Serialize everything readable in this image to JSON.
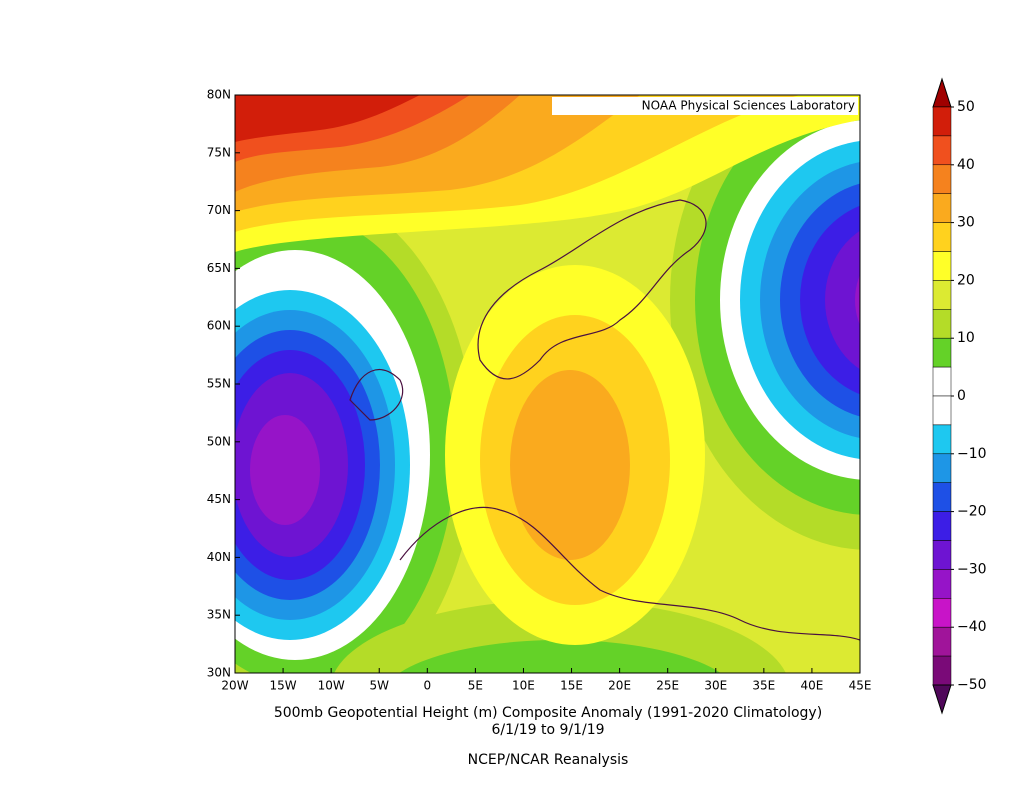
{
  "map": {
    "title": "500mb Geopotential Height (m) Composite Anomaly (1991-2020 Climatology)",
    "subtitle": "6/1/19  to 9/1/19",
    "source": "NCEP/NCAR Reanalysis",
    "credit": "NOAA Physical Sciences Laboratory",
    "lonlim": [
      -20,
      45
    ],
    "latlim": [
      30,
      80
    ],
    "lon_ticks": [
      {
        "value": -20,
        "label": "20W"
      },
      {
        "value": -15,
        "label": "15W"
      },
      {
        "value": -10,
        "label": "10W"
      },
      {
        "value": -5,
        "label": "5W"
      },
      0,
      {
        "value": 5,
        "label": "5E"
      },
      {
        "value": 10,
        "label": "10E"
      },
      {
        "value": 15,
        "label": "15E"
      },
      {
        "value": 20,
        "label": "20E"
      },
      {
        "value": 25,
        "label": "25E"
      },
      {
        "value": 30,
        "label": "30E"
      },
      {
        "value": 35,
        "label": "35E"
      },
      {
        "value": 40,
        "label": "40E"
      },
      {
        "value": 45,
        "label": "45E"
      }
    ],
    "lat_ticks": [
      {
        "value": 30,
        "label": "30N"
      },
      {
        "value": 35,
        "label": "35N"
      },
      {
        "value": 40,
        "label": "40N"
      },
      {
        "value": 45,
        "label": "45N"
      },
      {
        "value": 50,
        "label": "50N"
      },
      {
        "value": 55,
        "label": "55N"
      },
      {
        "value": 60,
        "label": "60N"
      },
      {
        "value": 65,
        "label": "65N"
      },
      {
        "value": 70,
        "label": "70N"
      },
      {
        "value": 75,
        "label": "75N"
      },
      {
        "value": 80,
        "label": "80N"
      }
    ],
    "colorbar": {
      "lim": [
        -50,
        50
      ],
      "ticks": [
        50,
        40,
        30,
        20,
        10,
        0,
        {
          "value": -10,
          "label": "−10"
        },
        {
          "value": -20,
          "label": "−20"
        },
        {
          "value": -30,
          "label": "−30"
        },
        {
          "value": -40,
          "label": "−40"
        },
        {
          "value": -50,
          "label": "−50"
        }
      ],
      "colors": [
        "#a00000",
        "#d21e0a",
        "#f0501e",
        "#f5821e",
        "#faaa1e",
        "#ffd21e",
        "#ffff28",
        "#dcea32",
        "#b4dc28",
        "#64d228",
        "#ffffff",
        "#ffffff",
        "#1ec8f0",
        "#1e96e6",
        "#1e50e6",
        "#3c1ee6",
        "#6e14d2",
        "#9614c8",
        "#c814c8",
        "#a0149a",
        "#7a0a78",
        "#50085a"
      ]
    }
  }
}
